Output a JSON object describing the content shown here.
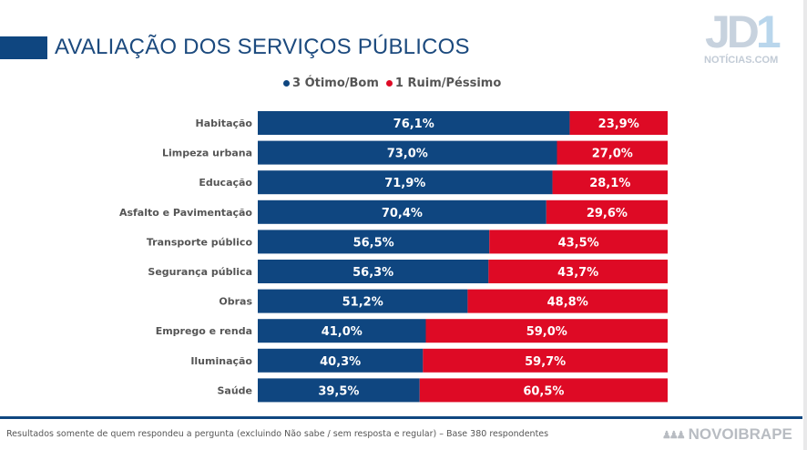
{
  "header": {
    "title": "AVALIAÇÃO DOS SERVIÇOS PÚBLICOS"
  },
  "logo": {
    "main_text": "JD",
    "accent_text": "1",
    "subtitle": "NOTÍCIAS.COM"
  },
  "footer": {
    "note": "Resultados somente de quem respondeu a pergunta (excluindo Não sabe / sem resposta e regular) – Base 380 respondentes",
    "brand": "NOVOIBRAPE",
    "brand_icon": "people-group-icon"
  },
  "colors": {
    "primary": "#0f4680",
    "secondary": "#de0a25"
  },
  "chart_data": {
    "type": "bar",
    "orientation": "horizontal",
    "stacked": true,
    "title": "AVALIAÇÃO DOS SERVIÇOS PÚBLICOS",
    "xlabel": "",
    "ylabel": "",
    "xlim": [
      0,
      100
    ],
    "grid": false,
    "legend_position": "top-center",
    "categories": [
      "Habitação",
      "Limpeza urbana",
      "Educação",
      "Asfalto e Pavimentação",
      "Transporte público",
      "Segurança pública",
      "Obras",
      "Emprego e renda",
      "Iluminação",
      "Saúde"
    ],
    "series": [
      {
        "name": "3 Ótimo/Bom",
        "color": "#0f4680",
        "values": [
          76.1,
          73.0,
          71.9,
          70.4,
          56.5,
          56.3,
          51.2,
          41.0,
          40.3,
          39.5
        ],
        "labels": [
          "76,1%",
          "73,0%",
          "71,9%",
          "70,4%",
          "56,5%",
          "56,3%",
          "51,2%",
          "41,0%",
          "40,3%",
          "39,5%"
        ]
      },
      {
        "name": "1 Ruim/Péssimo",
        "color": "#de0a25",
        "values": [
          23.9,
          27.0,
          28.1,
          29.6,
          43.5,
          43.7,
          48.8,
          59.0,
          59.7,
          60.5
        ],
        "labels": [
          "23,9%",
          "27,0%",
          "28,1%",
          "29,6%",
          "43,5%",
          "43,7%",
          "48,8%",
          "59,0%",
          "59,7%",
          "60,5%"
        ]
      }
    ]
  }
}
